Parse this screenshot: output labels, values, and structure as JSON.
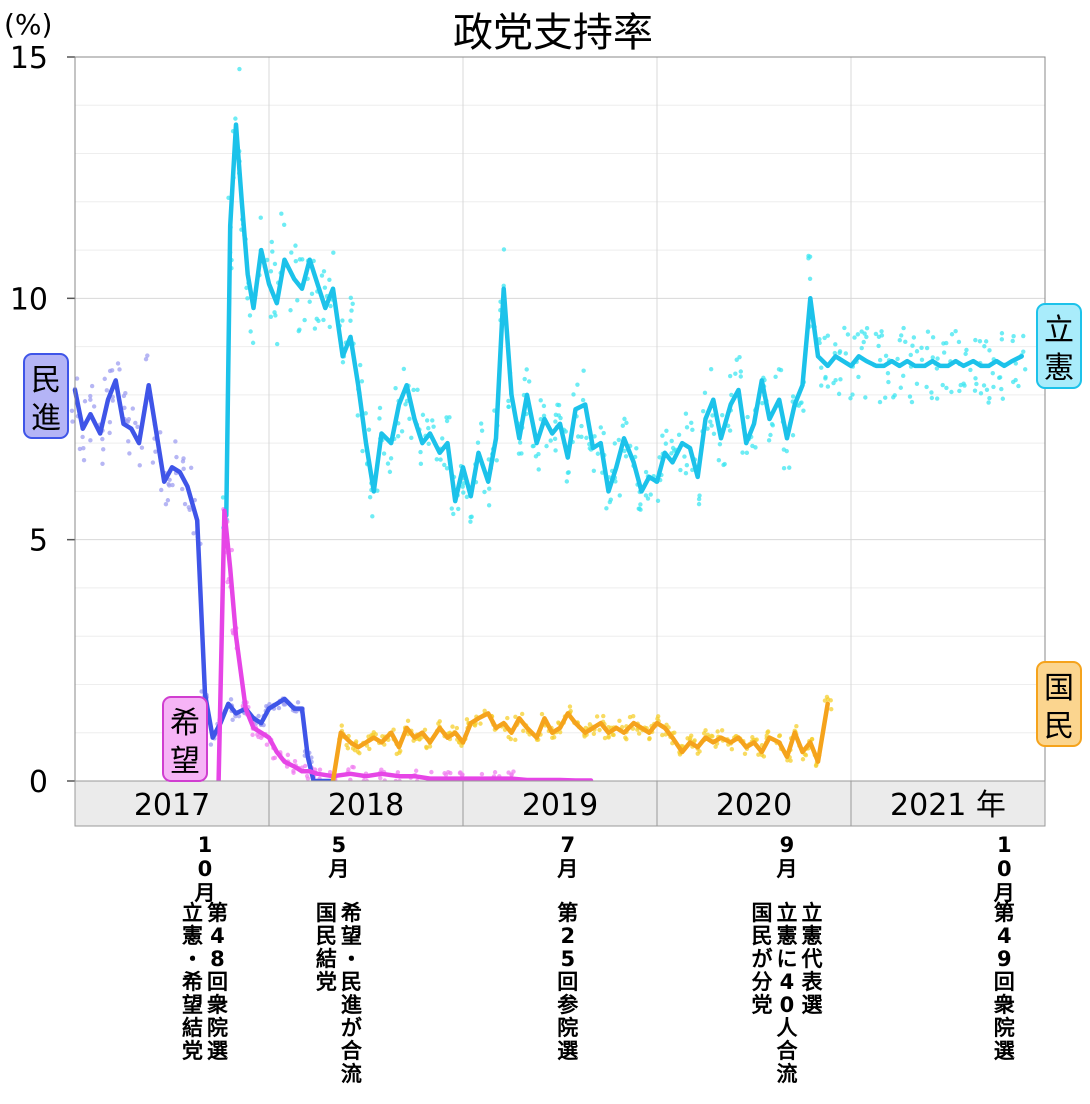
{
  "chart_data": {
    "type": "line",
    "title": "政党支持率",
    "ylabel": "(%)",
    "ylim": [
      0,
      15
    ],
    "yticks": [
      0,
      5,
      10,
      15
    ],
    "xlim": [
      2017.0,
      2022.0
    ],
    "grid": true,
    "years": [
      {
        "label": "2017",
        "start": 2017.0
      },
      {
        "label": "2018",
        "start": 2018.0
      },
      {
        "label": "2019",
        "start": 2019.0
      },
      {
        "label": "2020",
        "start": 2020.0
      },
      {
        "label": "2021 年",
        "start": 2021.0
      }
    ],
    "series": [
      {
        "name": "立憲",
        "color": "#1cc2ea",
        "dotColor": "#3ee6f0",
        "box": {
          "fill": "#a9ecfb",
          "stroke": "#1cc2ea"
        },
        "x": [
          2017.78,
          2017.8,
          2017.83,
          2017.86,
          2017.89,
          2017.92,
          2017.96,
          2018.0,
          2018.04,
          2018.08,
          2018.13,
          2018.17,
          2018.21,
          2018.25,
          2018.29,
          2018.33,
          2018.38,
          2018.42,
          2018.46,
          2018.5,
          2018.54,
          2018.58,
          2018.63,
          2018.67,
          2018.71,
          2018.75,
          2018.79,
          2018.83,
          2018.88,
          2018.92,
          2018.96,
          2019.0,
          2019.04,
          2019.08,
          2019.13,
          2019.17,
          2019.21,
          2019.25,
          2019.29,
          2019.33,
          2019.38,
          2019.42,
          2019.46,
          2019.5,
          2019.54,
          2019.58,
          2019.63,
          2019.67,
          2019.71,
          2019.75,
          2019.79,
          2019.83,
          2019.88,
          2019.92,
          2019.96,
          2020.0,
          2020.04,
          2020.08,
          2020.13,
          2020.17,
          2020.21,
          2020.25,
          2020.29,
          2020.33,
          2020.38,
          2020.42,
          2020.46,
          2020.5,
          2020.54,
          2020.58,
          2020.63,
          2020.67,
          2020.71,
          2020.75,
          2020.79,
          2020.83,
          2020.88,
          2020.92,
          2020.96,
          2021.0,
          2021.04,
          2021.08,
          2021.13,
          2021.17,
          2021.21,
          2021.25,
          2021.29,
          2021.33,
          2021.38,
          2021.42,
          2021.46,
          2021.5,
          2021.54,
          2021.58,
          2021.63,
          2021.67,
          2021.71,
          2021.75,
          2021.79,
          2021.83,
          2021.88
        ],
        "values": [
          5.5,
          11.5,
          13.6,
          12.0,
          10.5,
          9.8,
          11.0,
          10.3,
          9.9,
          10.8,
          10.4,
          10.2,
          10.8,
          10.3,
          9.8,
          10.2,
          8.8,
          9.2,
          8.2,
          7.0,
          6.0,
          7.2,
          7.0,
          7.8,
          8.2,
          7.5,
          7.0,
          7.2,
          6.8,
          7.0,
          5.8,
          6.5,
          5.9,
          6.8,
          6.2,
          7.1,
          10.2,
          8.0,
          7.1,
          8.0,
          7.0,
          7.5,
          7.2,
          7.4,
          6.7,
          7.7,
          7.8,
          6.9,
          7.0,
          6.0,
          6.5,
          7.1,
          6.6,
          6.0,
          6.3,
          6.2,
          6.8,
          6.6,
          7.0,
          6.9,
          6.3,
          7.5,
          7.9,
          7.1,
          7.8,
          8.1,
          7.0,
          7.4,
          8.3,
          7.5,
          7.9,
          7.1,
          7.8,
          8.2,
          10.0,
          8.8,
          8.6,
          8.8,
          8.7,
          8.6,
          8.8,
          8.7,
          8.6,
          8.6,
          8.7,
          8.6,
          8.7,
          8.6,
          8.6,
          8.7,
          8.6,
          8.6,
          8.7,
          8.6,
          8.7,
          8.6,
          8.6,
          8.7,
          8.6,
          8.7,
          8.8
        ]
      },
      {
        "name": "民進",
        "color": "#3f55e8",
        "dotColor": "#9e9ef0",
        "box": {
          "fill": "#b4b4f6",
          "stroke": "#3f55e8"
        },
        "x": [
          2017.0,
          2017.04,
          2017.08,
          2017.13,
          2017.17,
          2017.21,
          2017.25,
          2017.29,
          2017.33,
          2017.38,
          2017.42,
          2017.46,
          2017.5,
          2017.54,
          2017.58,
          2017.63,
          2017.67,
          2017.71,
          2017.75,
          2017.79,
          2017.83,
          2017.88,
          2017.92,
          2017.96,
          2018.0,
          2018.04,
          2018.08,
          2018.13,
          2018.17,
          2018.2,
          2018.23,
          2018.33
        ],
        "values": [
          8.1,
          7.3,
          7.6,
          7.2,
          7.9,
          8.3,
          7.4,
          7.3,
          7.0,
          8.2,
          7.2,
          6.2,
          6.5,
          6.4,
          6.1,
          5.4,
          1.8,
          0.9,
          1.2,
          1.6,
          1.4,
          1.5,
          1.3,
          1.2,
          1.5,
          1.6,
          1.7,
          1.5,
          1.5,
          0.5,
          0.0,
          0.0
        ]
      },
      {
        "name": "希望",
        "color": "#e645e6",
        "dotColor": "#f07ef0",
        "box": {
          "fill": "#f6b4f6",
          "stroke": "#d03ed0"
        },
        "x": [
          2017.74,
          2017.77,
          2017.8,
          2017.83,
          2017.88,
          2017.92,
          2017.96,
          2018.0,
          2018.04,
          2018.08,
          2018.13,
          2018.17,
          2018.21,
          2018.25,
          2018.33,
          2018.42,
          2018.5,
          2018.58,
          2018.67,
          2018.75,
          2018.83,
          2018.92,
          2019.0,
          2019.08,
          2019.17,
          2019.25,
          2019.33,
          2019.42,
          2019.5,
          2019.58,
          2019.66
        ],
        "values": [
          0.0,
          5.6,
          4.4,
          3.0,
          1.5,
          1.1,
          1.0,
          0.9,
          0.6,
          0.4,
          0.3,
          0.2,
          0.2,
          0.15,
          0.1,
          0.15,
          0.1,
          0.15,
          0.1,
          0.1,
          0.05,
          0.05,
          0.05,
          0.05,
          0.05,
          0.05,
          0.02,
          0.02,
          0.02,
          0.01,
          0.01
        ]
      },
      {
        "name": "国民",
        "color": "#f5a31c",
        "dotColor": "#f5cf2e",
        "box": {
          "fill": "#fbd58f",
          "stroke": "#f5a31c"
        },
        "x": [
          2018.33,
          2018.37,
          2018.42,
          2018.46,
          2018.5,
          2018.54,
          2018.58,
          2018.63,
          2018.67,
          2018.71,
          2018.75,
          2018.79,
          2018.83,
          2018.88,
          2018.92,
          2018.96,
          2019.0,
          2019.04,
          2019.08,
          2019.13,
          2019.17,
          2019.21,
          2019.25,
          2019.29,
          2019.33,
          2019.38,
          2019.42,
          2019.46,
          2019.5,
          2019.54,
          2019.58,
          2019.63,
          2019.67,
          2019.71,
          2019.75,
          2019.79,
          2019.83,
          2019.88,
          2019.92,
          2019.96,
          2020.0,
          2020.04,
          2020.08,
          2020.13,
          2020.17,
          2020.21,
          2020.25,
          2020.29,
          2020.33,
          2020.38,
          2020.42,
          2020.46,
          2020.5,
          2020.54,
          2020.58,
          2020.63,
          2020.67,
          2020.71,
          2020.75,
          2020.79,
          2020.83,
          2020.88
        ],
        "values": [
          0.0,
          1.0,
          0.8,
          0.7,
          0.8,
          0.9,
          0.8,
          1.0,
          0.7,
          1.1,
          0.9,
          1.0,
          0.8,
          1.1,
          0.9,
          1.0,
          0.8,
          1.2,
          1.3,
          1.4,
          1.1,
          1.2,
          1.0,
          1.3,
          1.1,
          0.9,
          1.3,
          1.0,
          1.1,
          1.4,
          1.2,
          1.0,
          1.1,
          1.2,
          1.0,
          1.1,
          1.0,
          1.2,
          1.1,
          1.0,
          1.2,
          1.1,
          0.9,
          0.6,
          0.8,
          0.7,
          0.9,
          0.8,
          0.9,
          0.8,
          0.9,
          0.7,
          0.8,
          0.6,
          0.9,
          0.8,
          0.5,
          1.0,
          0.6,
          0.8,
          0.4,
          1.6
        ]
      }
    ],
    "annotations": [
      {
        "x": 2017.67,
        "month": "10月",
        "lines": [
          "第48回衆院選",
          "立憲・希望結党"
        ]
      },
      {
        "x": 2018.36,
        "month": "5月",
        "lines": [
          "希望・民進が合流",
          "国民結党"
        ]
      },
      {
        "x": 2019.54,
        "month": "7月",
        "lines": [
          "第25回参院選"
        ]
      },
      {
        "x": 2020.67,
        "month": "9月",
        "lines": [
          "立憲代表選",
          "立憲に40人合流",
          "国民が分党"
        ]
      },
      {
        "x": 2021.79,
        "month": "10月",
        "lines": [
          "第49回衆院選"
        ]
      }
    ]
  }
}
